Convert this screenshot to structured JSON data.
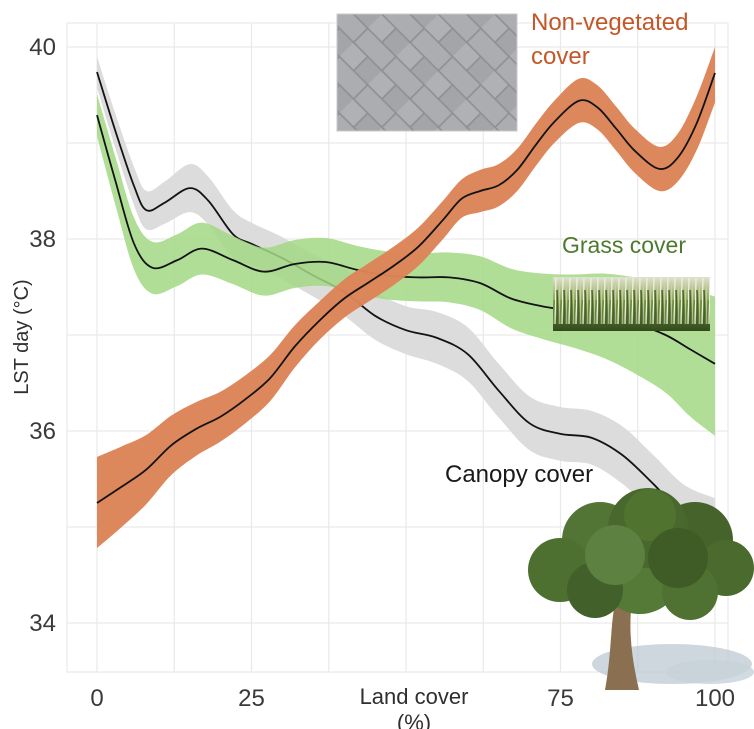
{
  "figure": {
    "xlabel": "Land cover (%)",
    "ylabel": "LST day (°C)",
    "annotations": {
      "nonveg_label": "Non-vegetated cover",
      "grass_label": "Grass cover",
      "canopy_label": "Canopy cover"
    },
    "colors": {
      "nonveg_text": "#c2582a",
      "grass_text": "#4e7a30",
      "canopy_text": "#1a1a1a",
      "tick_text": "#3a3a3a"
    },
    "images": [
      "paver-photo",
      "grass-photo",
      "tree-photo"
    ]
  },
  "chart_data": {
    "type": "line",
    "title": "",
    "xlabel": "Land cover (%)",
    "ylabel": "LST day (°C)",
    "xlim": [
      0,
      100
    ],
    "ylim": [
      33.5,
      40.3
    ],
    "grid": true,
    "grid_color": "#e9e9e9",
    "legend_position": "annotations-on-plot",
    "x_ticks": [
      {
        "value": 0,
        "label": "0"
      },
      {
        "value": 25,
        "label": "25"
      },
      {
        "value": 75,
        "label": "75"
      },
      {
        "value": 100,
        "label": "100"
      }
    ],
    "y_ticks": [
      {
        "value": 40,
        "label": "40"
      },
      {
        "value": 38,
        "label": "38"
      },
      {
        "value": 36,
        "label": "36"
      },
      {
        "value": 34,
        "label": "34"
      }
    ],
    "x_gridlines": [
      0,
      12.5,
      25,
      37.5,
      50,
      62.5,
      75,
      87.5,
      100
    ],
    "y_gridlines": [
      34,
      35,
      36,
      37,
      38,
      39,
      40
    ],
    "series": [
      {
        "name": "Canopy cover",
        "slug": "canopy-cover",
        "line_color": "#131313",
        "band_color": "#d9d9d9",
        "band_opacity": 0.92,
        "points_format": [
          "x_percent",
          "lst_mean",
          "ci_low",
          "ci_high"
        ],
        "points": [
          [
            0,
            39.74,
            39.58,
            39.9
          ],
          [
            3,
            39.12,
            38.94,
            39.3
          ],
          [
            6,
            38.55,
            38.35,
            38.75
          ],
          [
            8,
            38.3,
            38.1,
            38.5
          ],
          [
            11,
            38.38,
            38.16,
            38.6
          ],
          [
            15,
            38.53,
            38.28,
            38.78
          ],
          [
            18,
            38.4,
            38.15,
            38.65
          ],
          [
            22,
            38.05,
            37.8,
            38.3
          ],
          [
            25,
            37.95,
            37.73,
            38.17
          ],
          [
            30,
            37.8,
            37.58,
            38.02
          ],
          [
            35,
            37.62,
            37.4,
            37.84
          ],
          [
            40,
            37.45,
            37.2,
            37.7
          ],
          [
            45,
            37.2,
            36.95,
            37.45
          ],
          [
            50,
            37.05,
            36.8,
            37.3
          ],
          [
            55,
            36.97,
            36.7,
            37.24
          ],
          [
            60,
            36.8,
            36.52,
            37.08
          ],
          [
            65,
            36.42,
            36.14,
            36.7
          ],
          [
            70,
            36.08,
            35.8,
            36.36
          ],
          [
            75,
            35.97,
            35.69,
            36.25
          ],
          [
            80,
            35.93,
            35.65,
            36.21
          ],
          [
            85,
            35.75,
            35.45,
            36.05
          ],
          [
            90,
            35.45,
            35.15,
            35.75
          ],
          [
            95,
            35.12,
            34.8,
            35.44
          ],
          [
            100,
            34.95,
            34.6,
            35.3
          ]
        ]
      },
      {
        "name": "Grass cover",
        "slug": "grass-cover",
        "line_color": "#131313",
        "band_color": "#a3d884",
        "band_opacity": 0.85,
        "points_format": [
          "x_percent",
          "lst_mean",
          "ci_low",
          "ci_high"
        ],
        "points": [
          [
            0,
            39.29,
            39.07,
            39.51
          ],
          [
            3,
            38.6,
            38.35,
            38.85
          ],
          [
            6,
            37.95,
            37.68,
            38.22
          ],
          [
            9,
            37.7,
            37.43,
            37.97
          ],
          [
            13,
            37.78,
            37.51,
            38.05
          ],
          [
            17,
            37.9,
            37.63,
            38.17
          ],
          [
            22,
            37.78,
            37.53,
            38.03
          ],
          [
            27,
            37.66,
            37.41,
            37.91
          ],
          [
            32,
            37.74,
            37.49,
            37.99
          ],
          [
            37,
            37.76,
            37.51,
            38.01
          ],
          [
            42,
            37.68,
            37.43,
            37.93
          ],
          [
            47,
            37.62,
            37.37,
            37.87
          ],
          [
            52,
            37.6,
            37.35,
            37.85
          ],
          [
            57,
            37.6,
            37.34,
            37.86
          ],
          [
            62,
            37.54,
            37.26,
            37.82
          ],
          [
            67,
            37.38,
            37.07,
            37.69
          ],
          [
            72,
            37.3,
            36.96,
            37.64
          ],
          [
            77,
            37.25,
            36.87,
            37.63
          ],
          [
            82,
            37.2,
            36.76,
            37.64
          ],
          [
            87,
            37.12,
            36.6,
            37.6
          ],
          [
            92,
            37.0,
            36.4,
            37.54
          ],
          [
            96,
            36.85,
            36.15,
            37.48
          ],
          [
            100,
            36.7,
            35.95,
            37.4
          ]
        ]
      },
      {
        "name": "Non-vegetated cover",
        "slug": "non-vegetated-cover",
        "line_color": "#131313",
        "band_color": "#dc8457",
        "band_opacity": 0.97,
        "points_format": [
          "x_percent",
          "lst_mean",
          "ci_low",
          "ci_high"
        ],
        "points": [
          [
            0,
            35.25,
            34.78,
            35.73
          ],
          [
            4,
            35.42,
            35.0,
            35.84
          ],
          [
            8,
            35.6,
            35.24,
            35.96
          ],
          [
            12,
            35.85,
            35.54,
            36.16
          ],
          [
            16,
            36.02,
            35.74,
            36.3
          ],
          [
            20,
            36.15,
            35.89,
            36.41
          ],
          [
            24,
            36.33,
            36.08,
            36.58
          ],
          [
            28,
            36.55,
            36.31,
            36.79
          ],
          [
            32,
            36.88,
            36.66,
            37.1
          ],
          [
            36,
            37.15,
            36.95,
            37.35
          ],
          [
            40,
            37.38,
            37.18,
            37.58
          ],
          [
            44,
            37.55,
            37.35,
            37.75
          ],
          [
            48,
            37.72,
            37.52,
            37.92
          ],
          [
            52,
            37.92,
            37.72,
            38.12
          ],
          [
            56,
            38.2,
            38.0,
            38.4
          ],
          [
            59,
            38.42,
            38.22,
            38.62
          ],
          [
            62,
            38.5,
            38.28,
            38.72
          ],
          [
            65,
            38.56,
            38.34,
            38.78
          ],
          [
            68,
            38.72,
            38.5,
            38.94
          ],
          [
            71,
            38.98,
            38.76,
            39.2
          ],
          [
            74,
            39.22,
            39.0,
            39.44
          ],
          [
            78,
            39.44,
            39.21,
            39.67
          ],
          [
            81,
            39.37,
            39.14,
            39.6
          ],
          [
            84,
            39.15,
            38.92,
            39.38
          ],
          [
            87,
            38.92,
            38.69,
            39.15
          ],
          [
            91,
            38.73,
            38.5,
            38.96
          ],
          [
            94,
            38.85,
            38.6,
            39.1
          ],
          [
            97,
            39.2,
            38.92,
            39.48
          ],
          [
            100,
            39.73,
            39.42,
            40.0
          ]
        ]
      }
    ]
  }
}
